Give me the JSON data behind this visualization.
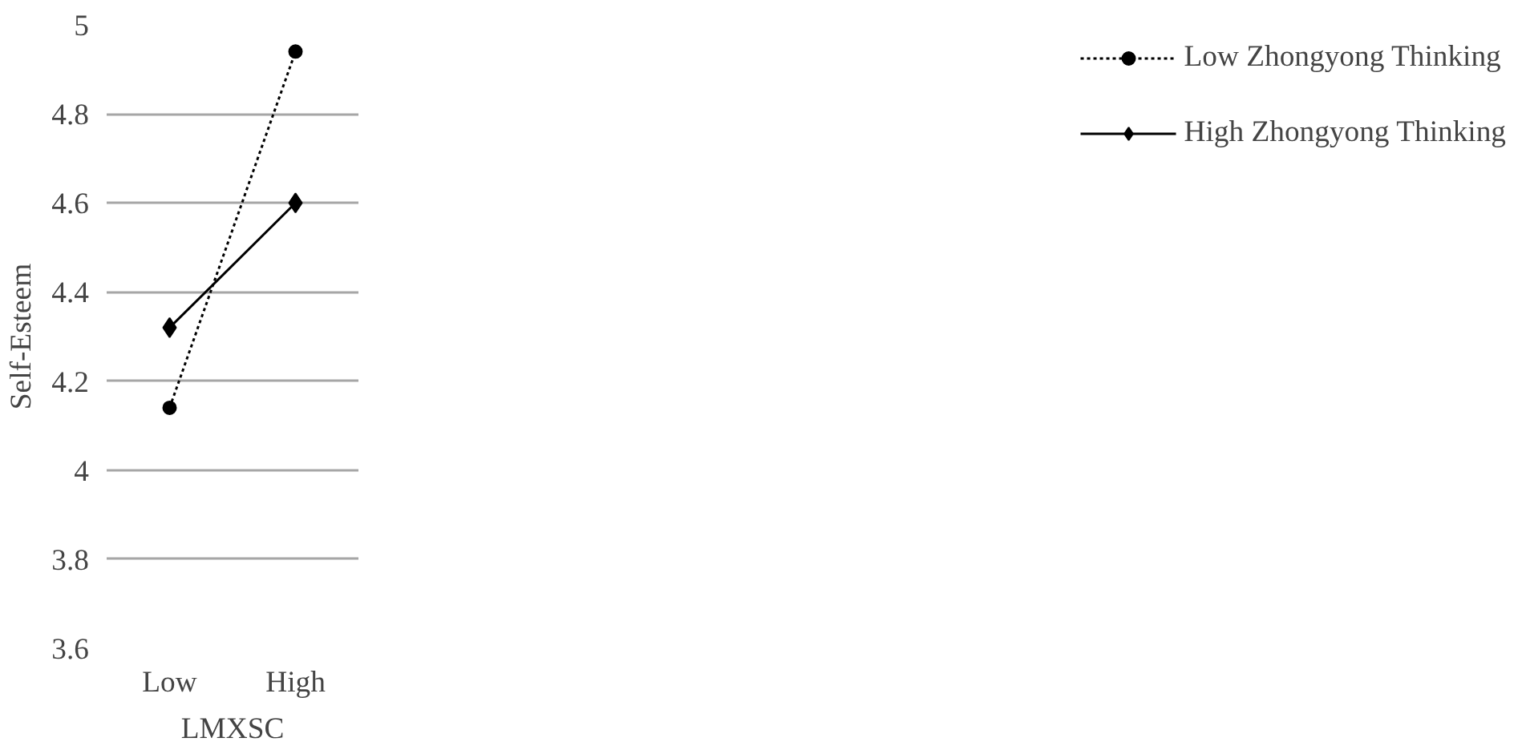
{
  "chart_data": {
    "type": "line",
    "xlabel": "LMXSC",
    "ylabel": "Self-Esteem",
    "categories": [
      "Low",
      "High"
    ],
    "series": [
      {
        "name": "Low Zhongyong Thinking",
        "color": "#000000",
        "values": [
          4.14,
          4.94
        ],
        "marker": "circle",
        "line_style": "dotted"
      },
      {
        "name": "High Zhongyong Thinking",
        "color": "#000000",
        "values": [
          4.32,
          4.6
        ],
        "marker": "diamond",
        "line_style": "solid"
      }
    ],
    "ylim": [
      3.6,
      5
    ],
    "yticks": [
      3.6,
      3.8,
      4,
      4.2,
      4.4,
      4.6,
      4.8,
      5
    ],
    "grid": "y",
    "legend": "right"
  }
}
